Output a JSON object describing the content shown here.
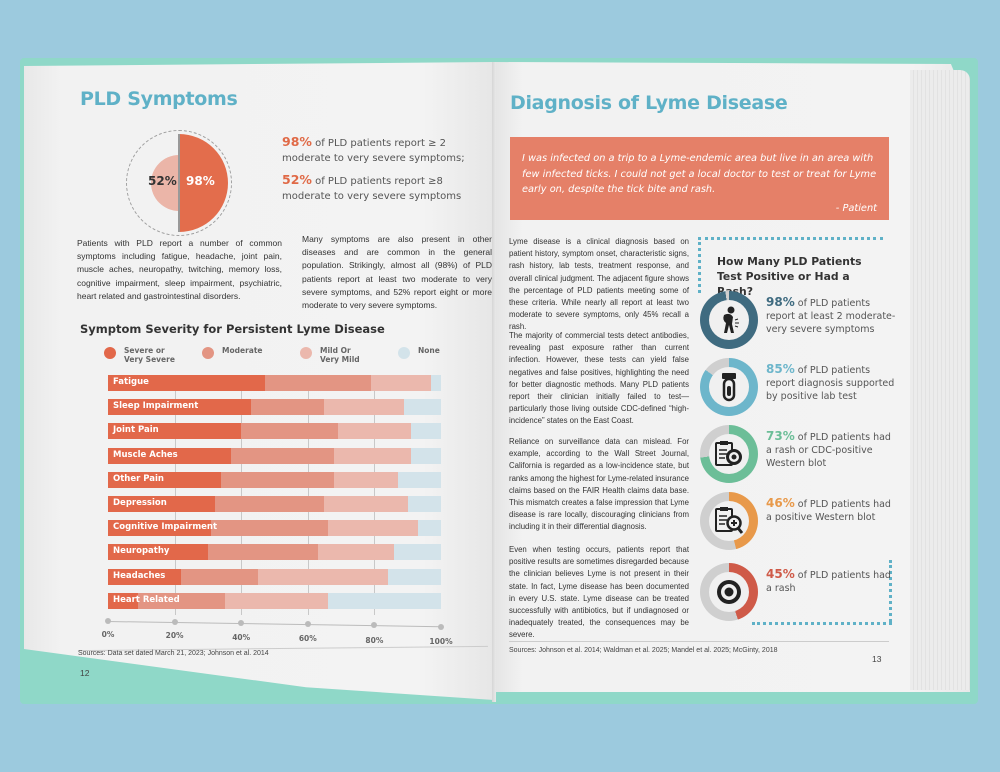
{
  "left_page": {
    "title": "PLD Symptoms",
    "donut": {
      "inner_label": "52%",
      "outer_label": "98%"
    },
    "stats": [
      {
        "value": "98%",
        "text": " of PLD patients report ≥ 2 moderate to very severe symptoms;"
      },
      {
        "value": "52%",
        "text": " of PLD patients report ≥8 moderate to very severe symptoms"
      }
    ],
    "para1": "Patients with PLD report a number of common symptoms including fatigue, headache, joint pain, muscle aches, neuropathy, twitching, memory loss, cognitive impairment, sleep impairment, psychiatric, heart related and gastrointestinal disorders.",
    "para2": "Many symptoms are also present in other diseases and are common in the general population. Strikingly, almost all (98%) of PLD patients report at least two moderate to very severe symptoms, and 52% report eight or more moderate to very severe symptoms.",
    "sources": "Sources: Data set dated March 21, 2023; Johnson et al. 2014",
    "page_number": "12"
  },
  "chart_data": {
    "type": "bar",
    "orientation": "horizontal",
    "stacked": true,
    "title": "Symptom Severity for Persistent Lyme Disease",
    "categories": [
      "Fatigue",
      "Sleep Impairment",
      "Joint Pain",
      "Muscle Aches",
      "Other Pain",
      "Depression",
      "Cognitive Impairment",
      "Neuropathy",
      "Headaches",
      "Heart Related"
    ],
    "series": [
      {
        "name": "Severe or Very Severe",
        "color": "#e2684a",
        "values": [
          47,
          43,
          40,
          37,
          34,
          32,
          31,
          30,
          22,
          9
        ]
      },
      {
        "name": "Moderate",
        "color": "#e39583",
        "values": [
          32,
          22,
          29,
          31,
          34,
          33,
          35,
          33,
          23,
          26
        ]
      },
      {
        "name": "Mild Or Very Mild",
        "color": "#ebb8ad",
        "values": [
          18,
          24,
          22,
          23,
          19,
          25,
          27,
          23,
          39,
          31
        ]
      },
      {
        "name": "None",
        "color": "#d3e3ea",
        "values": [
          3,
          11,
          9,
          9,
          13,
          10,
          7,
          14,
          16,
          34
        ]
      }
    ],
    "legend_labels": [
      "Severe or\nVery Severe",
      "Moderate",
      "Mild Or\nVery Mild",
      "None"
    ],
    "xlabel": "",
    "ylabel": "",
    "xlim": [
      0,
      100
    ],
    "x_ticks": [
      "0%",
      "20%",
      "40%",
      "60%",
      "80%",
      "100%"
    ],
    "grid": true,
    "legend_position": "top"
  },
  "right_page": {
    "title": "Diagnosis of Lyme Disease",
    "quote": "I was infected on a trip to a Lyme-endemic area but live in an area with few infected ticks. I could not get a local doctor to test or treat for Lyme early on, despite the tick bite and rash.",
    "quote_attribution": "- Patient",
    "paragraphs": [
      "Lyme disease is a clinical diagnosis based on patient history, symptom onset, characteristic signs, rash history, lab tests, treatment response, and overall clinical judgment. The adjacent figure shows the percentage of PLD patients meeting some of these criteria. While nearly all report at least two moderate to severe symptoms, only 45% recall a rash.",
      "The majority of commercial tests detect antibodies, revealing past exposure rather than current infection. However, these tests can yield false negatives and false positives, highlighting the need for better diagnostic methods. Many PLD patients report their clinician initially failed to test—particularly those living outside CDC-defined “high-incidence” states on the East Coast.",
      "Reliance on surveillance data can mislead. For example, according to the Wall Street Journal, California is regarded as a low-incidence state, but ranks among the highest for Lyme-related insurance claims based on the FAIR Health claims data base. This mismatch creates a false impression that Lyme disease is rare locally, discouraging clinicians from including it in their differential diagnosis.",
      "Even when testing occurs, patients report that positive results are sometimes disregarded because the clinician believes Lyme is not present in their state. In fact, Lyme disease has been documented in every U.S. state. Lyme disease can be treated successfully with antibiotics, but if undiagnosed or inadequately treated, the consequences may be severe."
    ],
    "infographic": {
      "title": "How Many PLD Patients Test Positive or Had a Rash?",
      "items": [
        {
          "value": "98%",
          "percent": 98,
          "text": " of PLD patients report at least 2 moderate-very severe symptoms",
          "color": "#3f6b80",
          "icon": "sick-person-icon"
        },
        {
          "value": "85%",
          "percent": 85,
          "text": " of PLD patients report diagnosis supported by positive lab test",
          "color": "#6db6cb",
          "icon": "test-tube-icon"
        },
        {
          "value": "73%",
          "percent": 73,
          "text": " of PLD patients had a rash or CDC-positive Western blot",
          "color": "#6cbe98",
          "icon": "clipboard-target-icon"
        },
        {
          "value": "46%",
          "percent": 46,
          "text": " of PLD patients had a positive Western blot",
          "color": "#e8994a",
          "icon": "clipboard-magnifier-icon"
        },
        {
          "value": "45%",
          "percent": 45,
          "text": " of PLD patients had a rash",
          "color": "#cf5a48",
          "icon": "bullseye-rash-icon"
        }
      ]
    },
    "sources": "Sources: Johnson et al. 2014;  Waldman et al. 2025; Mandel et al. 2025; McGinty, 2018",
    "page_number": "13"
  }
}
